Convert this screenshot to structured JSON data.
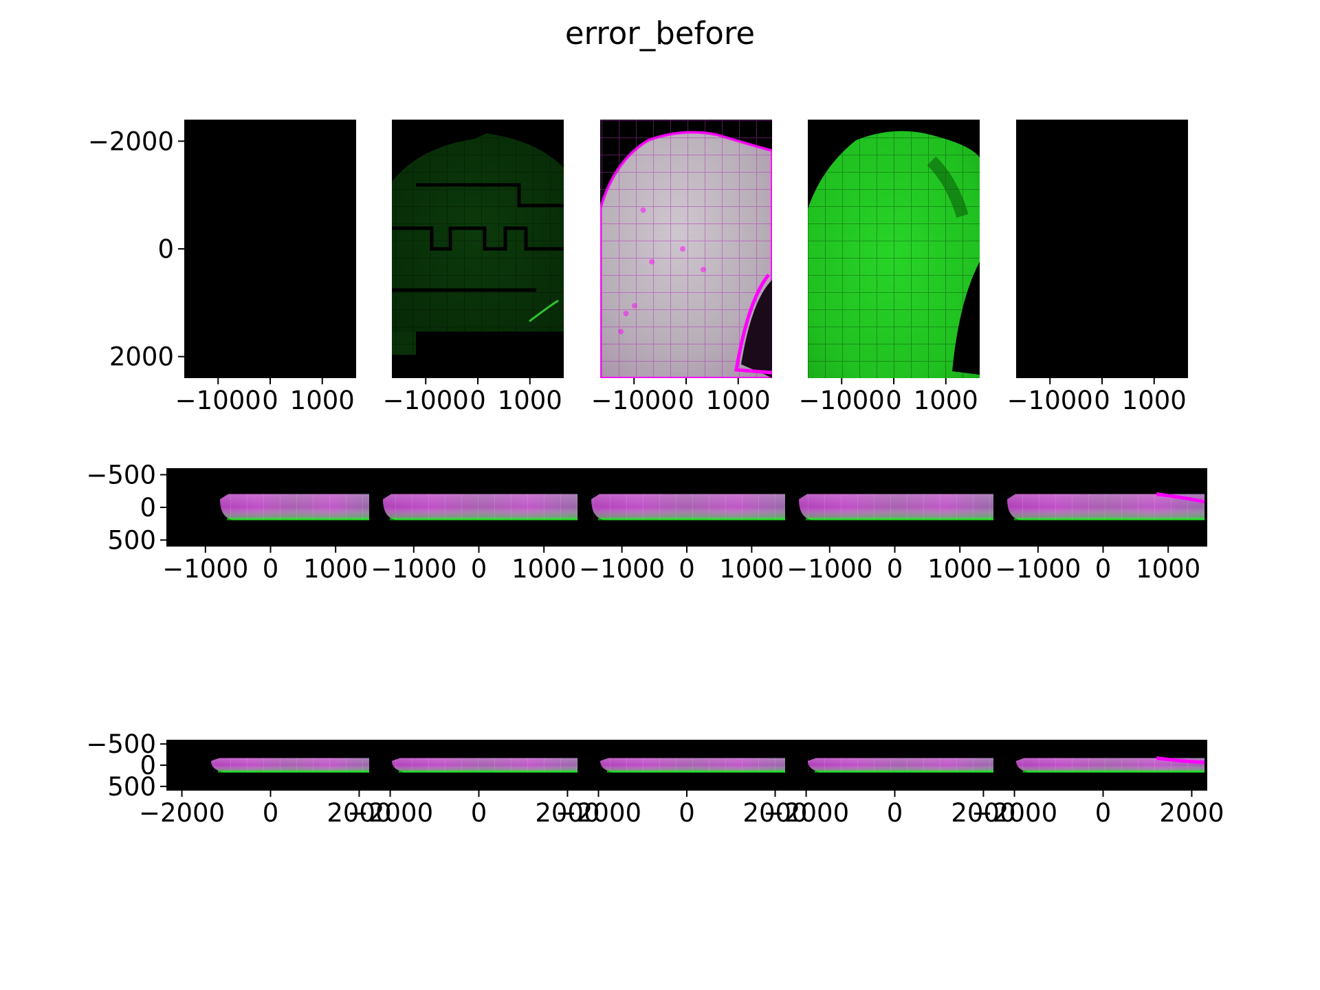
{
  "title": "error_before",
  "colors": {
    "background": "#000000",
    "channel_a": "#00ff00",
    "channel_b": "#ff00ff",
    "overlay": "#c8c8c8"
  },
  "chart_data": [
    {
      "type": "heatmap",
      "view": "top",
      "panels": 5,
      "panel_content": [
        "empty",
        "green",
        "magenta-green overlay",
        "green",
        "empty"
      ],
      "xlim": [
        -1650,
        1650
      ],
      "ylim": [
        2400,
        -2400
      ],
      "x_ticks": [
        -1000,
        0,
        1000
      ],
      "x_tick_labels": [
        "−1000",
        "0",
        "1000"
      ],
      "y_ticks": [
        -2000,
        0,
        2000
      ],
      "y_tick_labels": [
        "−2000",
        "0",
        "2000"
      ],
      "grid": false,
      "legend": "none"
    },
    {
      "type": "heatmap",
      "view": "middle",
      "panels": 5,
      "panel_content": [
        "magenta-green overlay",
        "magenta-green overlay",
        "magenta-green overlay",
        "magenta-green overlay",
        "magenta-green overlay"
      ],
      "xlim": [
        -1600,
        1600
      ],
      "ylim": [
        600,
        -600
      ],
      "x_ticks": [
        -1000,
        0,
        1000
      ],
      "x_tick_labels": [
        "−1000",
        "0",
        "1000"
      ],
      "y_ticks": [
        -500,
        0,
        500
      ],
      "y_tick_labels": [
        "−500",
        "0",
        "500"
      ],
      "grid": false,
      "legend": "none"
    },
    {
      "type": "heatmap",
      "view": "bottom",
      "panels": 5,
      "panel_content": [
        "magenta-green overlay",
        "magenta-green overlay",
        "magenta-green overlay",
        "magenta-green overlay",
        "magenta-green overlay"
      ],
      "xlim": [
        -2350,
        2350
      ],
      "ylim": [
        600,
        -600
      ],
      "x_ticks": [
        -2000,
        0,
        2000
      ],
      "x_tick_labels": [
        "−2000",
        "0",
        "2000"
      ],
      "y_ticks": [
        -500,
        0,
        500
      ],
      "y_tick_labels": [
        "−500",
        "0",
        "500"
      ],
      "grid": false,
      "legend": "none"
    }
  ]
}
